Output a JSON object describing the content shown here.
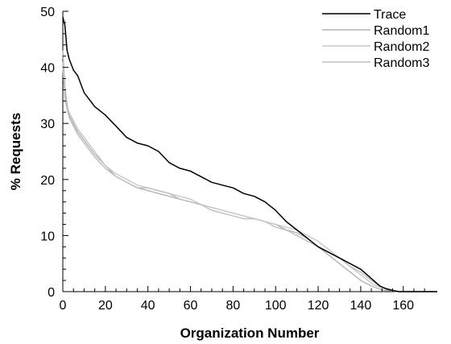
{
  "chart_data": {
    "type": "line",
    "xlabel": "Organization Number",
    "ylabel": "% Requests",
    "xlim": [
      0,
      176
    ],
    "ylim": [
      0,
      50
    ],
    "x_ticks": [
      "0",
      "20",
      "40",
      "60",
      "80",
      "100",
      "120",
      "140",
      "160"
    ],
    "y_ticks": [
      "0",
      "10",
      "20",
      "30",
      "40",
      "50"
    ],
    "legend_position": "top-right",
    "grid": false,
    "series": [
      {
        "name": "Trace",
        "color": "#000000",
        "x": [
          0,
          1,
          2,
          3,
          5,
          7,
          10,
          15,
          20,
          25,
          30,
          35,
          40,
          45,
          50,
          55,
          60,
          65,
          70,
          75,
          80,
          85,
          90,
          95,
          100,
          105,
          110,
          115,
          120,
          125,
          130,
          135,
          140,
          143,
          146,
          149,
          152,
          155,
          158,
          165,
          176
        ],
        "values": [
          49,
          47.5,
          43,
          41.5,
          39.5,
          38.5,
          35.5,
          33,
          31.5,
          29.5,
          27.5,
          26.5,
          26,
          25,
          23,
          22,
          21.5,
          20.5,
          19.5,
          19,
          18.5,
          17.5,
          17,
          16,
          14.5,
          12.5,
          11,
          9.5,
          8,
          7,
          6,
          5,
          4,
          3,
          2,
          1,
          0.5,
          0.2,
          0,
          0,
          0
        ]
      },
      {
        "name": "Random1",
        "color": "#b4b4b4",
        "x": [
          0,
          1,
          2,
          3,
          5,
          7,
          10,
          15,
          20,
          25,
          30,
          35,
          40,
          45,
          50,
          55,
          60,
          65,
          70,
          75,
          80,
          85,
          90,
          95,
          100,
          105,
          110,
          115,
          120,
          125,
          130,
          135,
          140,
          145,
          150,
          155,
          158,
          165,
          176
        ],
        "values": [
          43,
          36.5,
          33.5,
          31.5,
          30,
          28.5,
          27,
          24.5,
          22.5,
          20.5,
          19.5,
          18.5,
          18,
          17.5,
          17,
          16.5,
          16,
          15.5,
          15,
          14.5,
          14,
          13.5,
          13,
          12.5,
          12,
          11,
          10.5,
          9.5,
          8,
          6.5,
          5,
          3.5,
          2,
          1,
          0.3,
          0.1,
          0,
          0,
          0
        ]
      },
      {
        "name": "Random2",
        "color": "#c8c8c8",
        "x": [
          0,
          1,
          2,
          3,
          5,
          7,
          10,
          15,
          20,
          25,
          30,
          35,
          40,
          45,
          50,
          55,
          60,
          65,
          70,
          75,
          80,
          85,
          90,
          95,
          100,
          105,
          110,
          115,
          120,
          125,
          130,
          135,
          140,
          145,
          150,
          155,
          158,
          165,
          176
        ],
        "values": [
          41,
          35,
          33,
          32,
          30.5,
          29,
          27.5,
          25,
          22.5,
          21,
          20,
          19,
          18.5,
          18,
          17.5,
          17,
          16.5,
          15.5,
          15,
          14.5,
          14,
          13.5,
          13,
          12.5,
          12,
          11.5,
          11,
          10,
          9,
          7.5,
          6,
          4.5,
          3,
          1.5,
          0.6,
          0.2,
          0,
          0,
          0
        ]
      },
      {
        "name": "Random3",
        "color": "#bebebe",
        "x": [
          0,
          1,
          2,
          3,
          5,
          7,
          10,
          15,
          20,
          25,
          30,
          35,
          40,
          45,
          50,
          55,
          60,
          65,
          70,
          75,
          80,
          85,
          90,
          95,
          100,
          105,
          110,
          115,
          120,
          125,
          130,
          135,
          140,
          145,
          150,
          155,
          158,
          165,
          176
        ],
        "values": [
          40,
          34.5,
          32.5,
          31,
          29.5,
          28,
          26.5,
          24,
          22,
          20.5,
          19.5,
          18.5,
          18.5,
          18,
          17.5,
          16.5,
          16,
          15.5,
          14.5,
          14,
          13.5,
          13,
          13,
          12.5,
          11.5,
          11,
          10,
          9,
          8,
          7,
          6,
          4.5,
          3.5,
          2,
          0.8,
          0.3,
          0,
          0,
          0
        ]
      }
    ]
  }
}
